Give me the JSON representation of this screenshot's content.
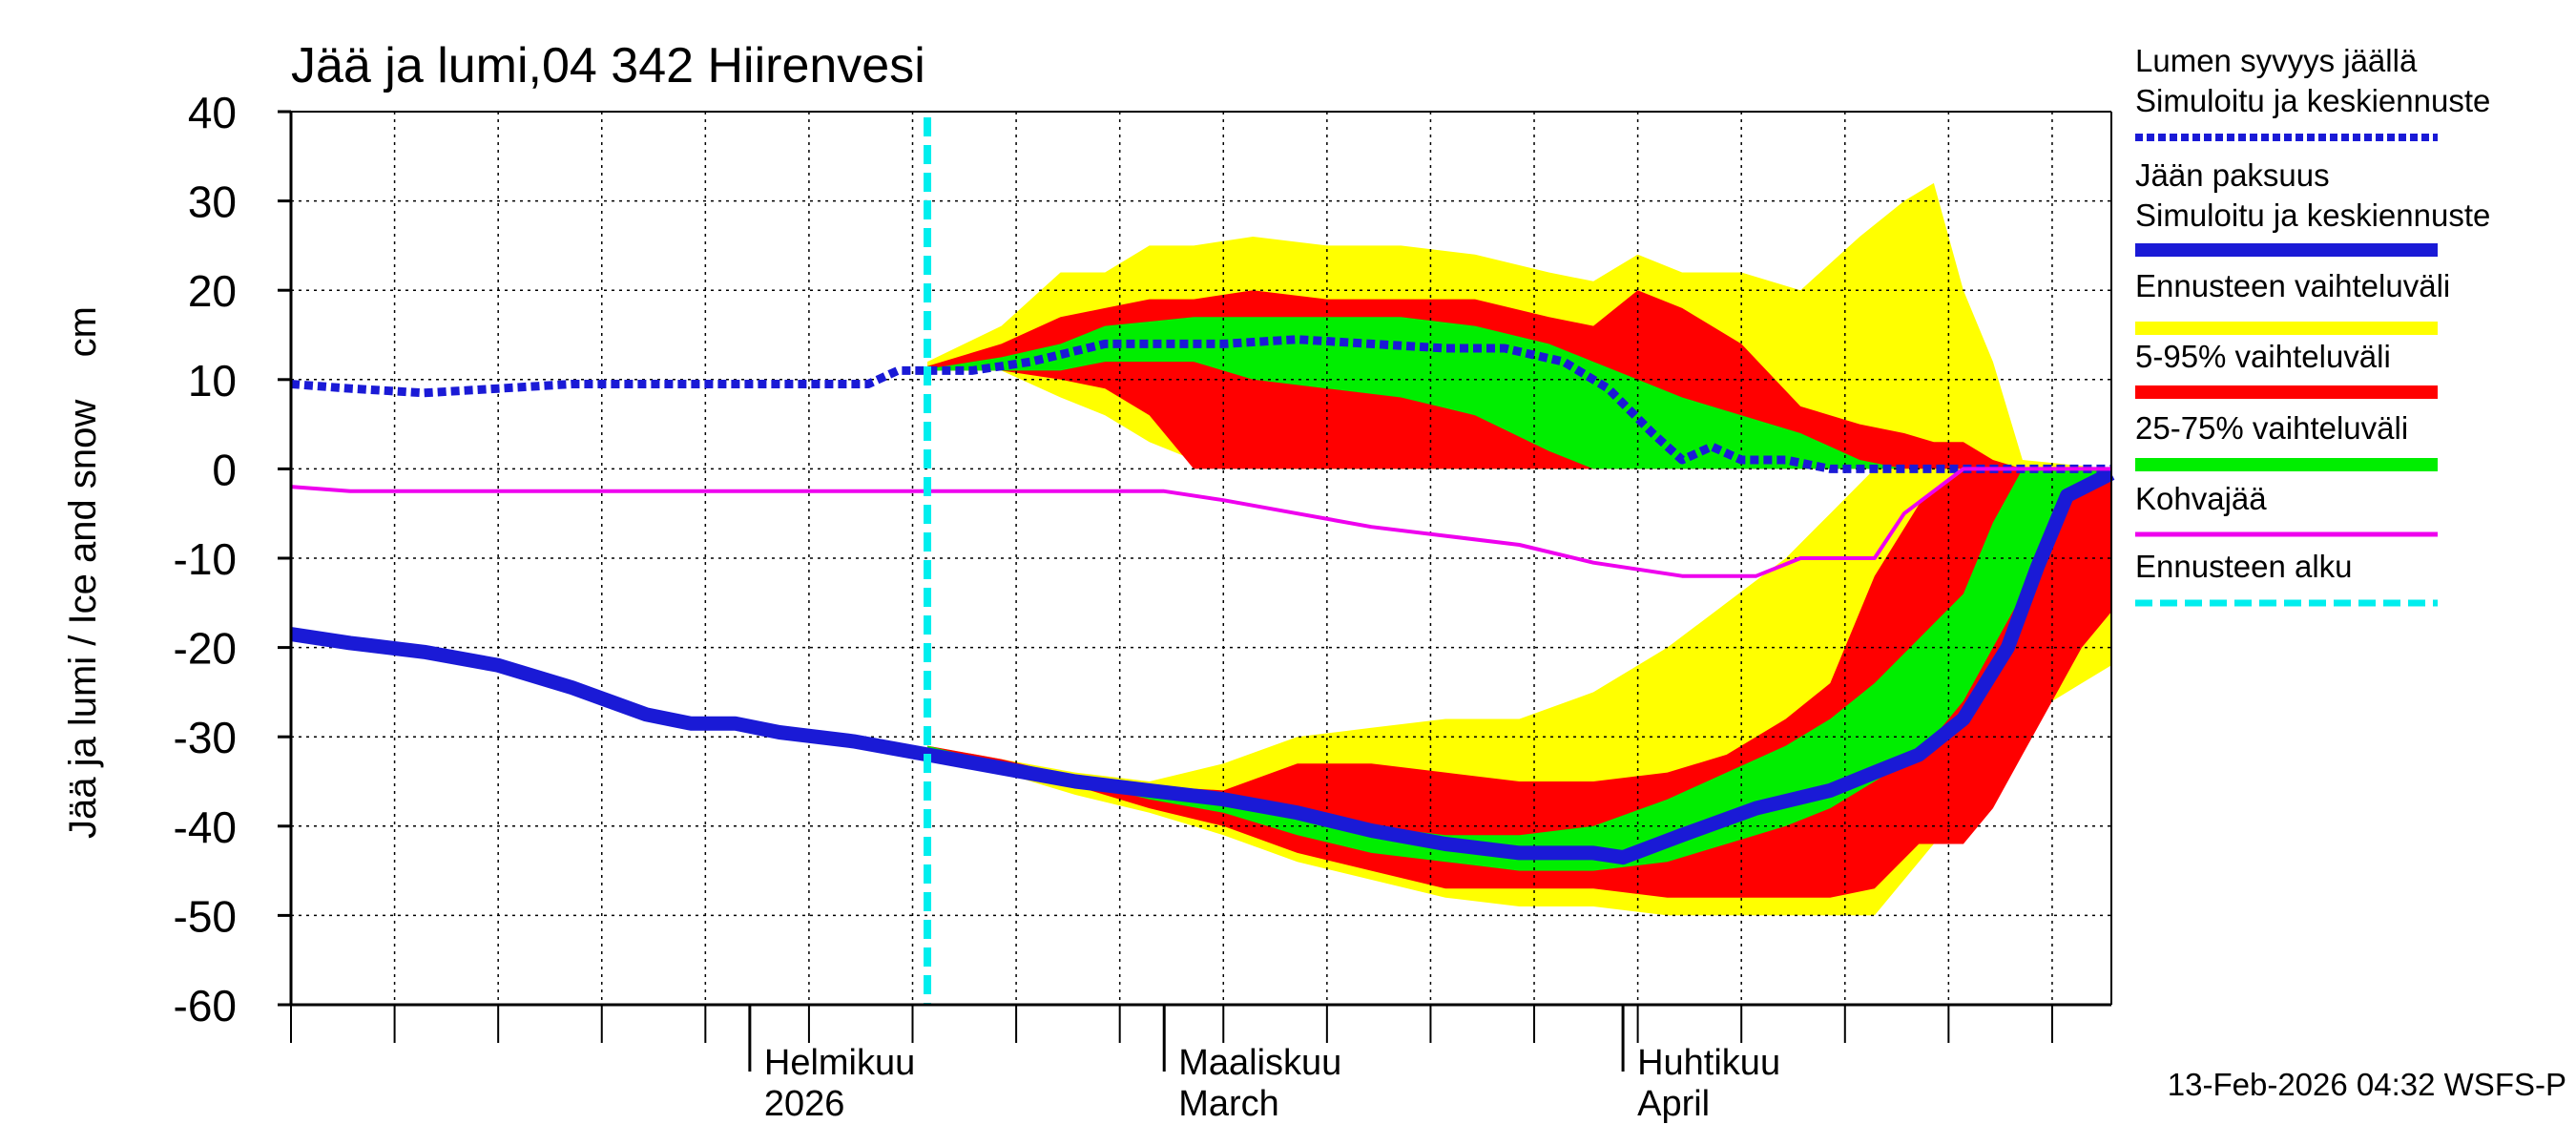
{
  "chart_data": {
    "type": "area",
    "title": "Jää ja lumi,04 342 Hiirenvesi",
    "ylabel": "Jää ja lumi / Ice and snow    cm",
    "ylim": [
      -60,
      40
    ],
    "yticks": [
      40,
      30,
      20,
      10,
      0,
      -10,
      -20,
      -30,
      -40,
      -50,
      -60
    ],
    "x_start": "2026-01-01",
    "x_end": "2026-05-04",
    "grid": true,
    "month_labels": [
      {
        "date": "2026-02-01",
        "line1": "Helmikuu",
        "line2": "2026"
      },
      {
        "date": "2026-03-01",
        "line1": "Maaliskuu",
        "line2": "March"
      },
      {
        "date": "2026-04-01",
        "line1": "Huhtikuu",
        "line2": "April"
      }
    ],
    "forecast_start": "2026-02-13",
    "footer": "13-Feb-2026 04:32 WSFS-P",
    "colors": {
      "full_range": "#ffff00",
      "range_5_95": "#ff0000",
      "range_25_75": "#00ee00",
      "snow": "#1a1ad6",
      "ice": "#1a1ad6",
      "slush": "#ee00ee",
      "forecast_start": "#00eeee"
    },
    "legend": [
      {
        "line1": "Lumen syvyys jäällä",
        "line2": "Simuloitu ja keskiennuste",
        "style": "dotted",
        "color": "#1a1ad6"
      },
      {
        "line1": "Jään paksuus",
        "line2": "Simuloitu ja keskiennuste",
        "style": "solid-thick",
        "color": "#1a1ad6"
      },
      {
        "line1": "Ennusteen vaihteluväli",
        "line2": "",
        "style": "solid-thick",
        "color": "#ffff00"
      },
      {
        "line1": "5-95% vaihteluväli",
        "line2": "",
        "style": "solid-thick",
        "color": "#ff0000"
      },
      {
        "line1": "25-75% vaihteluväli",
        "line2": "",
        "style": "solid-thick",
        "color": "#00ee00"
      },
      {
        "line1": "Kohvajää",
        "line2": "",
        "style": "solid",
        "color": "#ee00ee"
      },
      {
        "line1": "Ennusteen alku",
        "line2": "",
        "style": "dashed",
        "color": "#00eeee"
      }
    ],
    "series": [
      {
        "name": "Lumen syvyys jäällä",
        "x": [
          "2026-01-01",
          "2026-01-05",
          "2026-01-10",
          "2026-01-15",
          "2026-01-20",
          "2026-01-25",
          "2026-01-30",
          "2026-02-04",
          "2026-02-09",
          "2026-02-11",
          "2026-02-13",
          "2026-02-16",
          "2026-02-20",
          "2026-02-25",
          "2026-03-01",
          "2026-03-05",
          "2026-03-10",
          "2026-03-15",
          "2026-03-20",
          "2026-03-24",
          "2026-03-28",
          "2026-03-31",
          "2026-04-03",
          "2026-04-05",
          "2026-04-07",
          "2026-04-09",
          "2026-04-12",
          "2026-04-15",
          "2026-04-20",
          "2026-04-25",
          "2026-05-04"
        ],
        "y": [
          9.5,
          9,
          8.5,
          9,
          9.5,
          9.5,
          9.5,
          9.5,
          9.5,
          11,
          11,
          11,
          12,
          14,
          14,
          14,
          14.5,
          14,
          13.5,
          13.5,
          12,
          9,
          4,
          1,
          2.5,
          1,
          1,
          0,
          0,
          0,
          0
        ]
      },
      {
        "name": "Jään paksuus",
        "x": [
          "2026-01-01",
          "2026-01-05",
          "2026-01-10",
          "2026-01-15",
          "2026-01-20",
          "2026-01-25",
          "2026-01-28",
          "2026-01-31",
          "2026-02-03",
          "2026-02-08",
          "2026-02-13",
          "2026-02-18",
          "2026-02-23",
          "2026-02-28",
          "2026-03-05",
          "2026-03-10",
          "2026-03-15",
          "2026-03-20",
          "2026-03-25",
          "2026-03-30",
          "2026-04-01",
          "2026-04-05",
          "2026-04-10",
          "2026-04-15",
          "2026-04-18",
          "2026-04-21",
          "2026-04-24",
          "2026-04-27",
          "2026-04-29",
          "2026-05-01",
          "2026-05-04"
        ],
        "y": [
          -18.5,
          -19.5,
          -20.5,
          -22,
          -24.5,
          -27.5,
          -28.5,
          -28.5,
          -29.5,
          -30.5,
          -32,
          -33.5,
          -35,
          -36,
          -37,
          -38.5,
          -40.5,
          -42,
          -43,
          -43,
          -43.5,
          -41,
          -38,
          -36,
          -34,
          -32,
          -28,
          -20,
          -11,
          -3,
          -0.5
        ]
      },
      {
        "name": "Kohvajää",
        "x": [
          "2026-01-01",
          "2026-01-05",
          "2026-02-01",
          "2026-02-13",
          "2026-03-01",
          "2026-03-05",
          "2026-03-10",
          "2026-03-15",
          "2026-03-20",
          "2026-03-25",
          "2026-03-30",
          "2026-04-05",
          "2026-04-10",
          "2026-04-13",
          "2026-04-18",
          "2026-04-20",
          "2026-04-24",
          "2026-05-04"
        ],
        "y": [
          -2,
          -2.5,
          -2.5,
          -2.5,
          -2.5,
          -3.5,
          -5,
          -6.5,
          -7.5,
          -8.5,
          -10.5,
          -12,
          -12,
          -10,
          -10,
          -5,
          0,
          0
        ]
      }
    ],
    "bands": {
      "snow": {
        "x": [
          "2026-02-13",
          "2026-02-18",
          "2026-02-22",
          "2026-02-25",
          "2026-02-28",
          "2026-03-03",
          "2026-03-07",
          "2026-03-12",
          "2026-03-17",
          "2026-03-22",
          "2026-03-27",
          "2026-03-30",
          "2026-04-02",
          "2026-04-05",
          "2026-04-09",
          "2026-04-13",
          "2026-04-17",
          "2026-04-20",
          "2026-04-22",
          "2026-04-24",
          "2026-04-26",
          "2026-04-28",
          "2026-05-04"
        ],
        "yellow": [
          [
            11,
            12
          ],
          [
            11,
            16
          ],
          [
            8,
            22
          ],
          [
            6,
            22
          ],
          [
            3,
            25
          ],
          [
            1,
            25
          ],
          [
            0,
            26
          ],
          [
            0,
            25
          ],
          [
            0,
            25
          ],
          [
            0,
            24
          ],
          [
            0,
            22
          ],
          [
            0,
            21
          ],
          [
            0,
            24
          ],
          [
            0,
            22
          ],
          [
            0,
            22
          ],
          [
            0,
            20
          ],
          [
            0,
            26
          ],
          [
            0,
            30
          ],
          [
            0,
            32
          ],
          [
            0,
            20
          ],
          [
            0,
            12
          ],
          [
            0,
            1
          ],
          [
            0,
            0
          ]
        ],
        "red": [
          [
            11,
            11.5
          ],
          [
            11,
            14
          ],
          [
            10,
            17
          ],
          [
            9,
            18
          ],
          [
            6,
            19
          ],
          [
            0,
            19
          ],
          [
            0,
            20
          ],
          [
            0,
            19
          ],
          [
            0,
            19
          ],
          [
            0,
            19
          ],
          [
            0,
            17
          ],
          [
            0,
            16
          ],
          [
            0,
            20
          ],
          [
            0,
            18
          ],
          [
            0,
            14
          ],
          [
            0,
            7
          ],
          [
            0,
            5
          ],
          [
            0,
            4
          ],
          [
            0,
            3
          ],
          [
            0,
            3
          ],
          [
            0,
            1
          ],
          [
            0,
            0
          ],
          [
            0,
            0
          ]
        ],
        "green": [
          [
            11,
            11.2
          ],
          [
            11,
            12.5
          ],
          [
            11,
            14
          ],
          [
            12,
            16
          ],
          [
            12,
            16.5
          ],
          [
            12,
            17
          ],
          [
            10,
            17
          ],
          [
            9,
            17
          ],
          [
            8,
            17
          ],
          [
            6,
            16
          ],
          [
            2,
            14
          ],
          [
            0,
            12
          ],
          [
            0,
            10
          ],
          [
            0,
            8
          ],
          [
            0,
            6
          ],
          [
            0,
            4
          ],
          [
            0,
            1
          ],
          [
            0,
            0
          ],
          [
            0,
            0
          ],
          [
            0,
            0
          ],
          [
            0,
            0
          ],
          [
            0,
            0
          ],
          [
            0,
            0
          ]
        ]
      },
      "ice": {
        "x": [
          "2026-02-13",
          "2026-02-18",
          "2026-02-23",
          "2026-02-28",
          "2026-03-05",
          "2026-03-10",
          "2026-03-15",
          "2026-03-20",
          "2026-03-25",
          "2026-03-30",
          "2026-04-04",
          "2026-04-08",
          "2026-04-12",
          "2026-04-15",
          "2026-04-18",
          "2026-04-21",
          "2026-04-24",
          "2026-04-26",
          "2026-04-28",
          "2026-04-30",
          "2026-05-02",
          "2026-05-04"
        ],
        "yellow": [
          [
            -32,
            -31
          ],
          [
            -34,
            -32.5
          ],
          [
            -36.5,
            -34
          ],
          [
            -38.5,
            -35
          ],
          [
            -41,
            -33
          ],
          [
            -44,
            -30
          ],
          [
            -46,
            -29
          ],
          [
            -48,
            -28
          ],
          [
            -49,
            -28
          ],
          [
            -49,
            -25
          ],
          [
            -50,
            -20
          ],
          [
            -50,
            -15
          ],
          [
            -50,
            -10
          ],
          [
            -50,
            -5
          ],
          [
            -50,
            0
          ],
          [
            -44,
            0
          ],
          [
            -38,
            0
          ],
          [
            -32,
            0
          ],
          [
            -28,
            0
          ],
          [
            -26,
            0
          ],
          [
            -24,
            0
          ],
          [
            -22,
            0
          ]
        ],
        "red": [
          [
            -32,
            -31
          ],
          [
            -33.5,
            -32.5
          ],
          [
            -35.5,
            -34.5
          ],
          [
            -38,
            -35.5
          ],
          [
            -40,
            -36
          ],
          [
            -43,
            -33
          ],
          [
            -45,
            -33
          ],
          [
            -47,
            -34
          ],
          [
            -47,
            -35
          ],
          [
            -47,
            -35
          ],
          [
            -48,
            -34
          ],
          [
            -48,
            -32
          ],
          [
            -48,
            -28
          ],
          [
            -48,
            -24
          ],
          [
            -47,
            -12
          ],
          [
            -42,
            -4
          ],
          [
            -42,
            0
          ],
          [
            -38,
            0
          ],
          [
            -32,
            0
          ],
          [
            -26,
            0
          ],
          [
            -20,
            0
          ],
          [
            -16,
            0
          ]
        ],
        "green": [
          [
            -32,
            -31
          ],
          [
            -33.5,
            -33
          ],
          [
            -35,
            -34.5
          ],
          [
            -37,
            -36
          ],
          [
            -38.5,
            -37.5
          ],
          [
            -41,
            -39
          ],
          [
            -43,
            -40
          ],
          [
            -44,
            -41
          ],
          [
            -45,
            -41
          ],
          [
            -45,
            -40
          ],
          [
            -44,
            -37
          ],
          [
            -42,
            -34
          ],
          [
            -40,
            -31
          ],
          [
            -38,
            -28
          ],
          [
            -35,
            -24
          ],
          [
            -32,
            -19
          ],
          [
            -26,
            -14
          ],
          [
            -20,
            -6
          ],
          [
            -14,
            0
          ],
          [
            -6,
            0
          ],
          [
            -2,
            0
          ],
          [
            0,
            0
          ]
        ]
      }
    }
  }
}
